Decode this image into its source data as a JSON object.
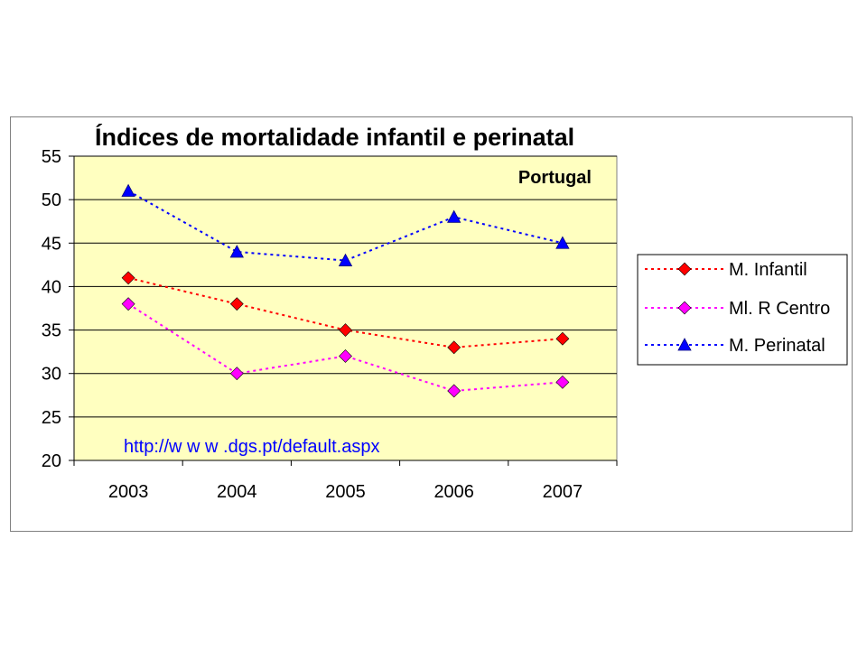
{
  "chart_data": {
    "type": "line",
    "title": "Índices de mortalidade infantil e perinatal",
    "annotation": "Portugal",
    "source": "http://w w w .dgs.pt/default.aspx",
    "categories": [
      "2003",
      "2004",
      "2005",
      "2006",
      "2007"
    ],
    "ylim": [
      20,
      55
    ],
    "yticks": [
      20,
      25,
      30,
      35,
      40,
      45,
      50,
      55
    ],
    "grid": true,
    "plot_background": "#ffffc0",
    "legend_position": "right",
    "series": [
      {
        "name": "M. Infantil",
        "values": [
          41,
          38,
          35,
          33,
          34
        ],
        "color": "#ff0000",
        "marker": "diamond",
        "line_style": "dashed"
      },
      {
        "name": "Ml. R Centro",
        "values": [
          38,
          30,
          32,
          28,
          29
        ],
        "color": "#ff00ff",
        "marker": "diamond",
        "line_style": "dashed"
      },
      {
        "name": "M. Perinatal",
        "values": [
          51,
          44,
          43,
          48,
          45
        ],
        "color": "#0000ff",
        "marker": "triangle",
        "line_style": "dashed"
      }
    ]
  }
}
